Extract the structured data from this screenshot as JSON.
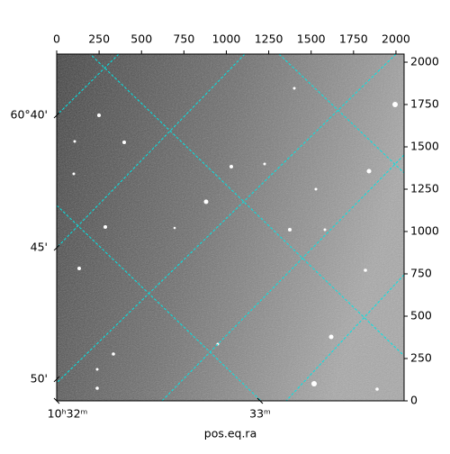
{
  "chart_data": {
    "type": "image",
    "xlabel": "pos.eq.ra",
    "xlim": [
      0,
      2048
    ],
    "ylim": [
      0,
      2048
    ],
    "xticks": [
      0,
      250,
      500,
      750,
      1000,
      1250,
      1500,
      1750,
      2000
    ],
    "yticks": [
      0,
      250,
      500,
      750,
      1000,
      1250,
      1500,
      1750,
      2000
    ],
    "ra_ticks": [
      {
        "value": 0,
        "label": "10ʰ32ᵐ"
      },
      {
        "value": 1199,
        "label": "33ᵐ"
      }
    ],
    "dec_ticks": [
      {
        "value": 1686,
        "label": "60°40'"
      },
      {
        "value": 904,
        "label": "45'"
      },
      {
        "value": 128,
        "label": "50'"
      }
    ],
    "grid_color": "#00e5e5"
  }
}
